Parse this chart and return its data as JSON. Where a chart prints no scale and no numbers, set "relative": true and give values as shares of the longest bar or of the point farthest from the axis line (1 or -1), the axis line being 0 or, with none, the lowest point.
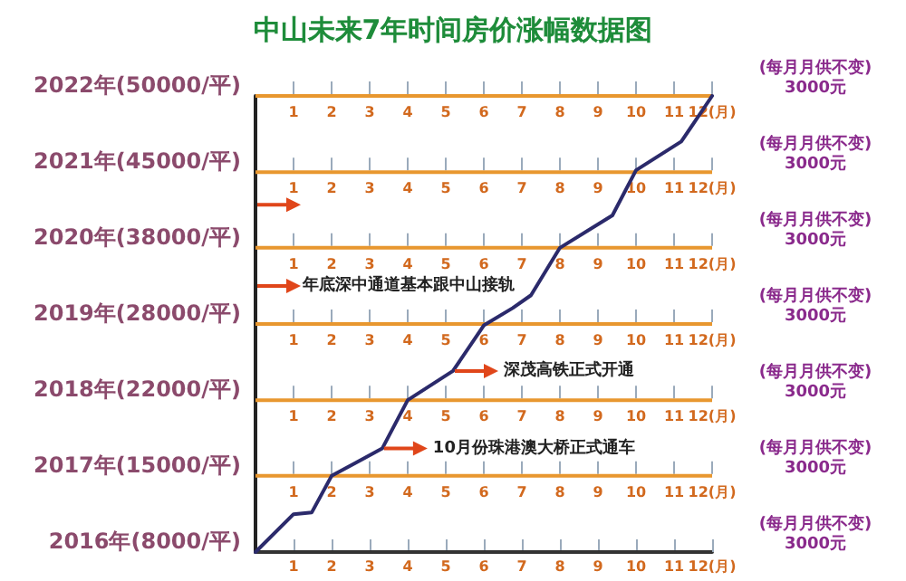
{
  "chart_data": {
    "type": "line",
    "title": "中山未来7年时间房价涨幅数据图",
    "relative": true,
    "xlim": [
      0,
      12
    ],
    "xticks": [
      {
        "value": 1,
        "label": "1"
      },
      {
        "value": 2,
        "label": "2"
      },
      {
        "value": 3,
        "label": "3"
      },
      {
        "value": 4,
        "label": "4"
      },
      {
        "value": 5,
        "label": "5"
      },
      {
        "value": 6,
        "label": "6"
      },
      {
        "value": 7,
        "label": "7"
      },
      {
        "value": 8,
        "label": "8"
      },
      {
        "value": 9,
        "label": "9"
      },
      {
        "value": 10,
        "label": "10"
      },
      {
        "value": 11,
        "label": "11"
      },
      {
        "value": 12,
        "label": "12(月)"
      }
    ],
    "marker": "none",
    "line_style": "solid",
    "ref_lines": [
      {
        "axis": "y",
        "value": 0,
        "label": "2016年(8000/平)",
        "color": "#333333"
      },
      {
        "axis": "y",
        "value": 0.167,
        "label": "2017年(15000/平)",
        "color": "#e8972f"
      },
      {
        "axis": "y",
        "value": 0.333,
        "label": "2018年(22000/平)",
        "color": "#e8972f"
      },
      {
        "axis": "y",
        "value": 0.5,
        "label": "2019年(28000/平)",
        "color": "#e8972f"
      },
      {
        "axis": "y",
        "value": 0.667,
        "label": "2020年(38000/平)",
        "color": "#e8972f"
      },
      {
        "axis": "y",
        "value": 0.833,
        "label": "2021年(45000/平)",
        "color": "#e8972f"
      },
      {
        "axis": "y",
        "value": 1,
        "label": "2022年(50000/平)",
        "color": "#e8972f"
      }
    ],
    "series": [
      {
        "color": "#2b2a6b",
        "x": [
          0,
          1,
          1.48,
          2,
          3.33,
          4,
          5.19,
          6,
          6.76,
          7.24,
          8,
          9.38,
          10,
          11.19,
          12
        ],
        "values": [
          0,
          0.083,
          0.087,
          0.167,
          0.227,
          0.333,
          0.397,
          0.497,
          0.535,
          0.563,
          0.667,
          0.738,
          0.837,
          0.9,
          1
        ]
      }
    ],
    "annotations": [
      {
        "text": "10月份珠港澳大桥正式通车",
        "x": 3.33,
        "y": 0.227
      },
      {
        "text": "深茂高铁正式开通",
        "x": 5.19,
        "y": 0.397
      },
      "年底深中通道基本跟中山接轨",
      "(每月月供不变)",
      "3000元",
      "(每月月供不变)",
      "3000元",
      "(每月月供不变)",
      "3000元",
      "(每月月供不变)",
      "3000元",
      "(每月月供不变)",
      "3000元",
      "(每月月供不变)",
      "3000元",
      "(每月月供不变)",
      "3000元"
    ]
  }
}
